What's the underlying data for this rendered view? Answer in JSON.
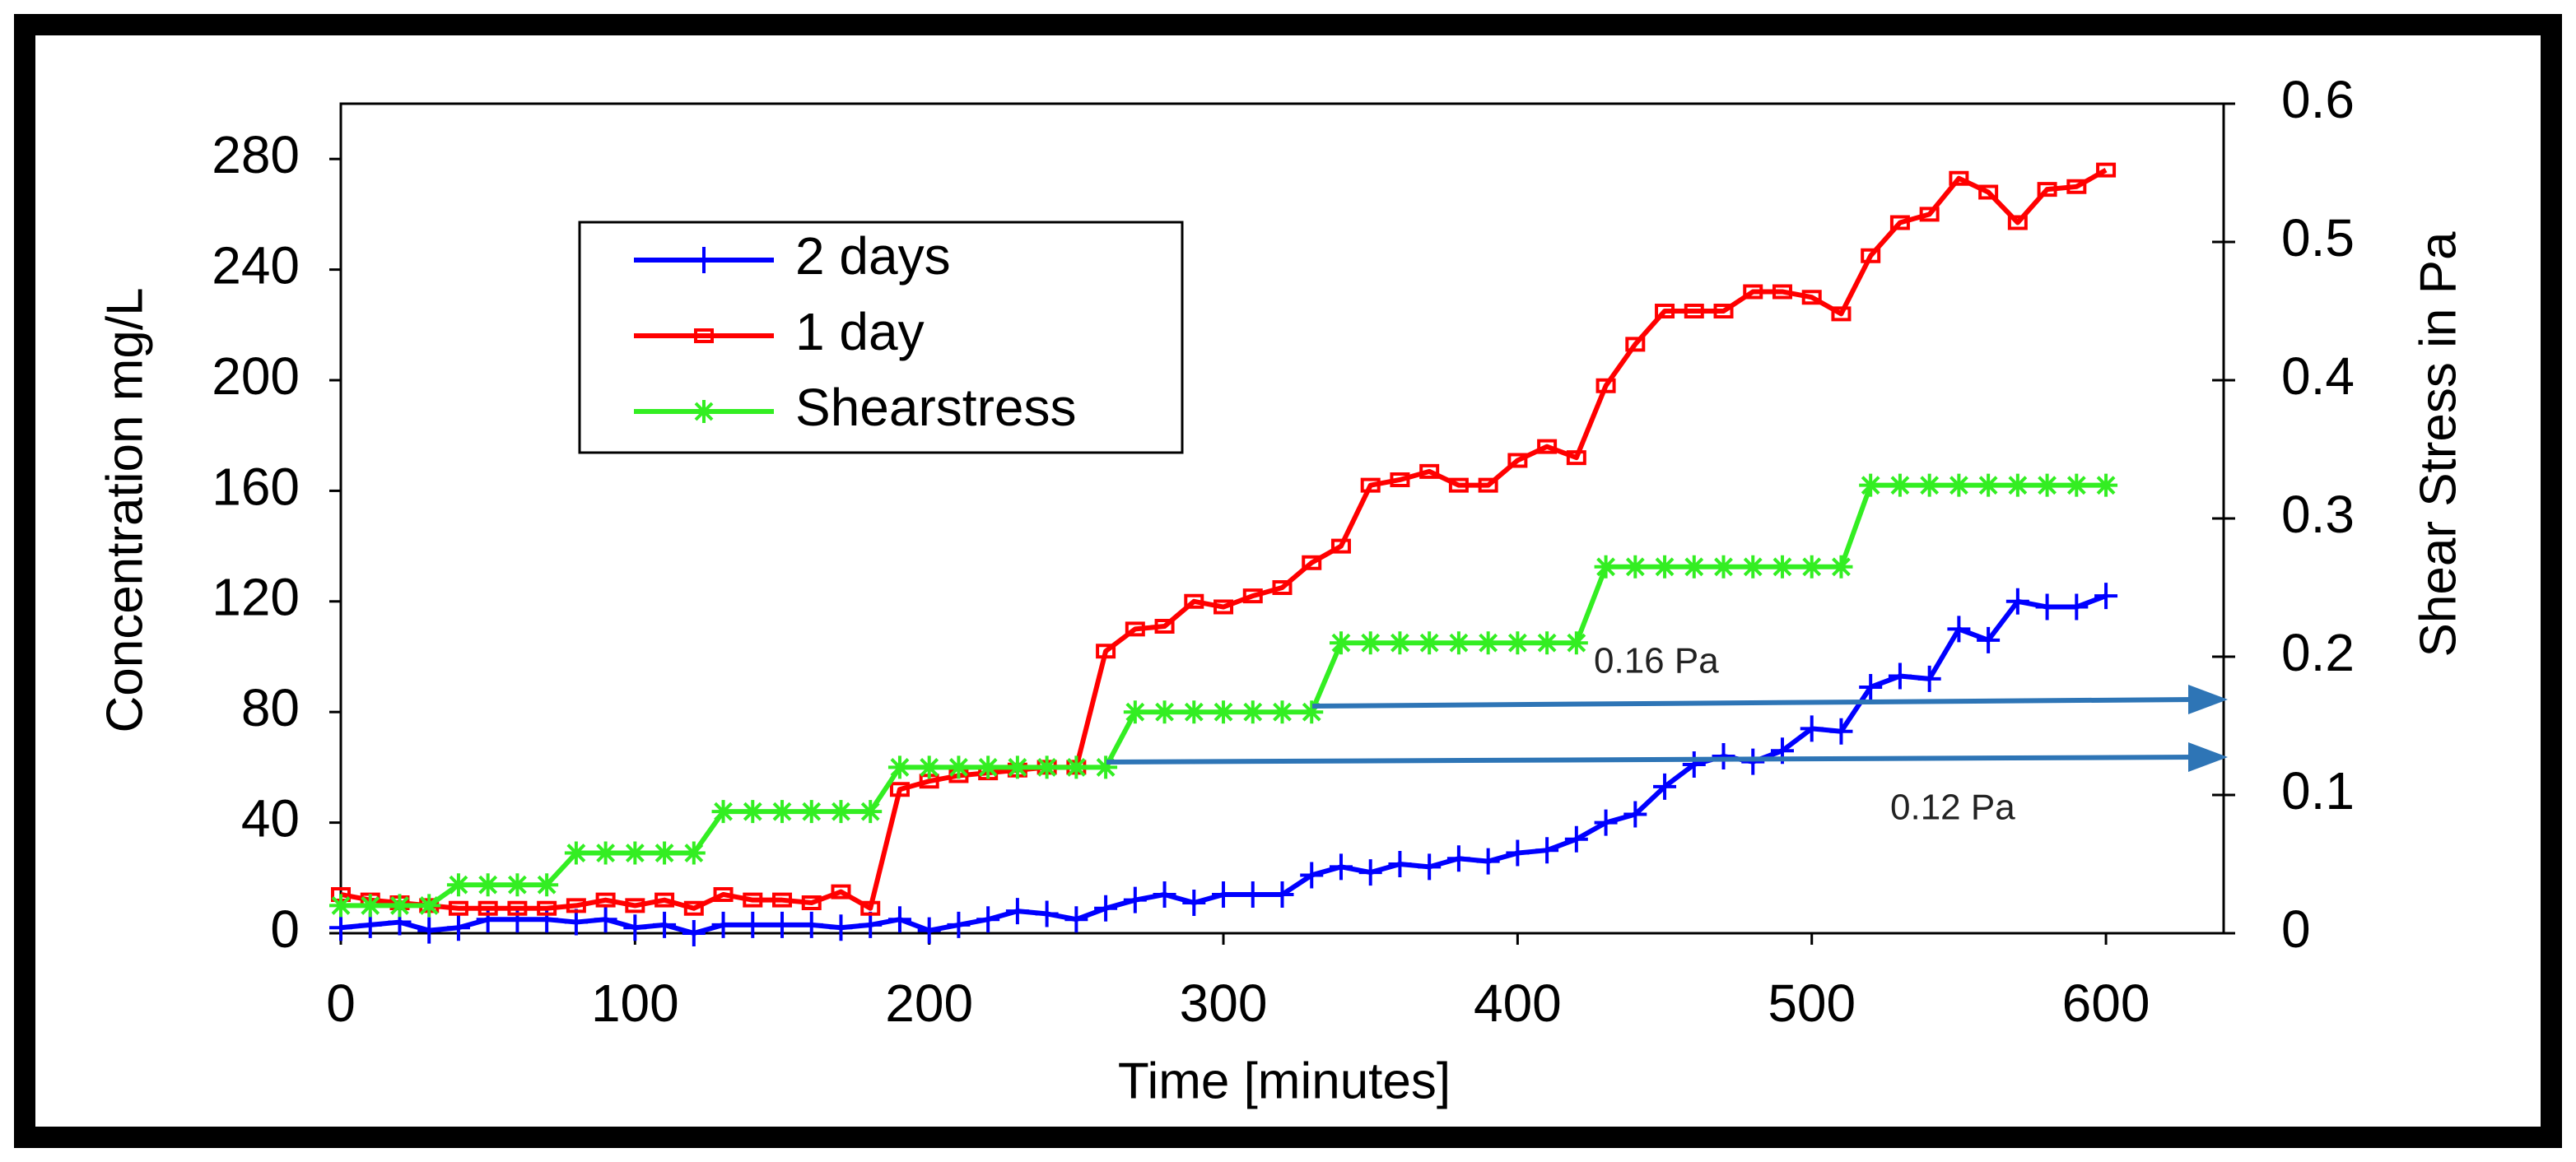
{
  "chart_data": {
    "type": "line",
    "x_label": "Time [minutes]",
    "y_label": "Concentration mg/L",
    "y2_label": "Shear Stress in Pa",
    "x": [
      0,
      10,
      20,
      30,
      40,
      50,
      60,
      70,
      80,
      90,
      100,
      110,
      120,
      130,
      140,
      150,
      160,
      170,
      180,
      190,
      200,
      210,
      220,
      230,
      240,
      250,
      260,
      270,
      280,
      290,
      300,
      310,
      320,
      330,
      340,
      350,
      360,
      370,
      380,
      390,
      400,
      410,
      420,
      430,
      440,
      450,
      460,
      470,
      480,
      490,
      500,
      510,
      520,
      530,
      540,
      550,
      560,
      570,
      580,
      590,
      600
    ],
    "series": [
      {
        "name": "2 days",
        "color": "#0000ff",
        "marker": "plus",
        "axis": "y",
        "values": [
          2,
          3,
          4,
          1,
          2,
          5,
          5,
          5,
          4,
          5,
          2,
          3,
          0,
          3,
          3,
          3,
          3,
          2,
          3,
          5,
          1,
          3,
          5,
          8,
          7,
          5,
          9,
          12,
          14,
          11,
          14,
          14,
          14,
          21,
          24,
          22,
          25,
          24,
          27,
          26,
          29,
          30,
          34,
          40,
          43,
          53,
          61,
          64,
          62,
          66,
          74,
          73,
          89,
          93,
          92,
          110,
          106,
          120,
          118,
          118,
          122
        ]
      },
      {
        "name": "1 day",
        "color": "#ff0000",
        "marker": "square",
        "axis": "y",
        "values": [
          14,
          12,
          11,
          10,
          9,
          9,
          9,
          9,
          10,
          12,
          10,
          12,
          9,
          14,
          12,
          12,
          11,
          15,
          9,
          52,
          55,
          57,
          58,
          59,
          60,
          60,
          102,
          110,
          111,
          120,
          118,
          122,
          125,
          134,
          140,
          162,
          164,
          167,
          162,
          162,
          171,
          176,
          172,
          198,
          213,
          225,
          225,
          225,
          232,
          232,
          230,
          224,
          245,
          257,
          260,
          273,
          268,
          257,
          269,
          270,
          276
        ]
      },
      {
        "name": "Shearstress",
        "color": "#33ee22",
        "marker": "asterisk",
        "axis": "y2",
        "values": [
          0.02,
          0.02,
          0.02,
          0.02,
          0.035,
          0.035,
          0.035,
          0.035,
          0.058,
          0.058,
          0.058,
          0.058,
          0.058,
          0.088,
          0.088,
          0.088,
          0.088,
          0.088,
          0.088,
          0.12,
          0.12,
          0.12,
          0.12,
          0.12,
          0.12,
          0.12,
          0.12,
          0.16,
          0.16,
          0.16,
          0.16,
          0.16,
          0.16,
          0.16,
          0.21,
          0.21,
          0.21,
          0.21,
          0.21,
          0.21,
          0.21,
          0.21,
          0.21,
          0.265,
          0.265,
          0.265,
          0.265,
          0.265,
          0.265,
          0.265,
          0.265,
          0.265,
          0.324,
          0.324,
          0.324,
          0.324,
          0.324,
          0.324,
          0.324,
          0.324,
          0.324
        ]
      }
    ],
    "xlim": [
      0,
      640
    ],
    "xticks": [
      0,
      100,
      200,
      300,
      400,
      500,
      600
    ],
    "ylim": [
      0,
      300
    ],
    "yticks": [
      0,
      40,
      80,
      120,
      160,
      200,
      240,
      280
    ],
    "y2lim": [
      0,
      0.6
    ],
    "y2ticks": [
      0,
      0.1,
      0.2,
      0.3,
      0.4,
      0.5,
      0.6
    ],
    "annotations": [
      {
        "text": "0.16 Pa"
      },
      {
        "text": "0.12 Pa"
      }
    ],
    "legend": "upper left"
  }
}
